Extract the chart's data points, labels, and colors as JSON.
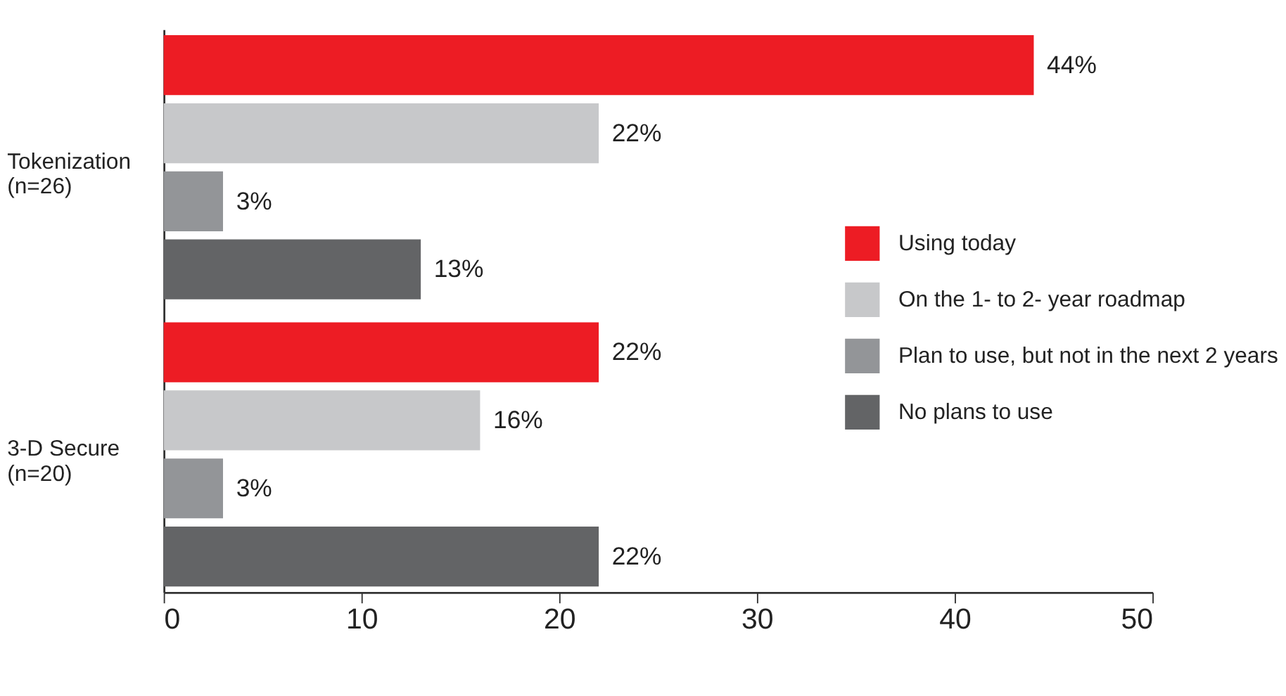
{
  "chart_data": {
    "type": "bar",
    "orientation": "horizontal",
    "categories": [
      "Tokenization\n(n=26)",
      "3-D Secure\n(n=20)"
    ],
    "series": [
      {
        "name": "Using today",
        "color": "#ed1c24",
        "values": [
          44,
          22
        ],
        "value_labels": [
          "44%",
          "22%"
        ]
      },
      {
        "name": "On the 1- to 2- year roadmap",
        "color": "#c7c8ca",
        "values": [
          22,
          16
        ],
        "value_labels": [
          "22%",
          "16%"
        ]
      },
      {
        "name": "Plan to use, but not in the next 2 years",
        "color": "#939598",
        "values": [
          3,
          3
        ],
        "value_labels": [
          "3%",
          "3%"
        ]
      },
      {
        "name": "No plans to use",
        "color": "#636466",
        "values": [
          13,
          22
        ],
        "value_labels": [
          "13%",
          "22%"
        ]
      }
    ],
    "xlim": [
      0,
      50
    ],
    "xticks": [
      0,
      10,
      20,
      30,
      40,
      50
    ],
    "grid": false,
    "legend": "right"
  }
}
